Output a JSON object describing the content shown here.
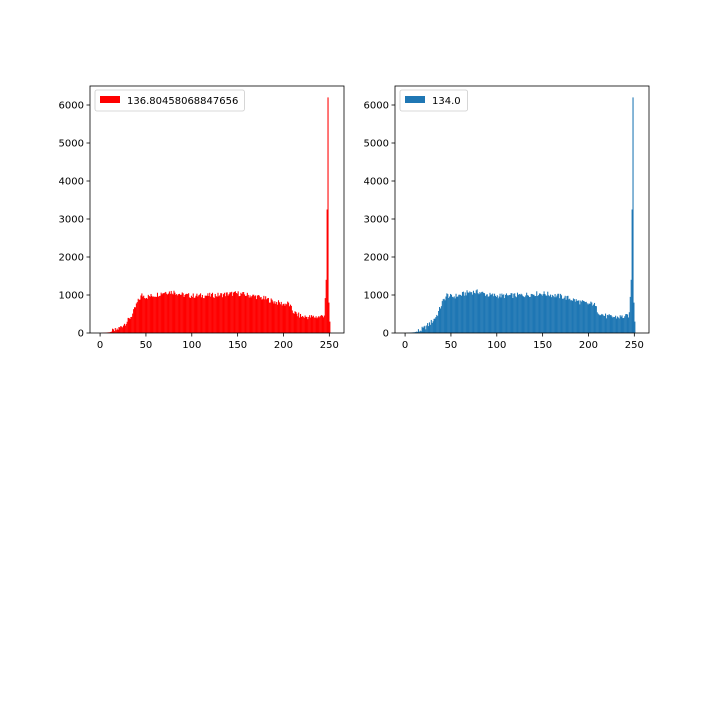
{
  "chart_data": [
    {
      "type": "histogram",
      "title": "",
      "xlabel": "",
      "ylabel": "",
      "xlim": [
        -11,
        266
      ],
      "ylim": [
        0,
        6500
      ],
      "xticks": [
        0,
        50,
        100,
        150,
        200,
        250
      ],
      "yticks": [
        0,
        1000,
        2000,
        3000,
        4000,
        5000,
        6000
      ],
      "xtick_labels": [
        "0",
        "50",
        "100",
        "150",
        "200",
        "250"
      ],
      "ytick_labels": [
        "0",
        "1000",
        "2000",
        "3000",
        "4000",
        "5000",
        "6000"
      ],
      "grid": false,
      "legend_position": "top-left",
      "series": [
        {
          "name": "136.80458068847656",
          "color": "#ff0000",
          "bins": [
            0,
            250
          ],
          "bin_width": 1,
          "counts_approx": {
            "0": 0,
            "10": 20,
            "15": 60,
            "20": 120,
            "25": 220,
            "30": 330,
            "35": 500,
            "40": 800,
            "45": 1000,
            "50": 950,
            "60": 1000,
            "70": 1080,
            "80": 1080,
            "90": 1000,
            "100": 980,
            "110": 980,
            "120": 990,
            "130": 1000,
            "140": 1030,
            "150": 1040,
            "160": 1000,
            "170": 960,
            "180": 900,
            "190": 820,
            "200": 760,
            "205": 780,
            "210": 560,
            "215": 480,
            "220": 430,
            "230": 420,
            "240": 430,
            "244": 480,
            "246": 1400,
            "247": 3250,
            "248": 6200,
            "249": 800,
            "250": 300
          }
        }
      ]
    },
    {
      "type": "histogram",
      "title": "",
      "xlabel": "",
      "ylabel": "",
      "xlim": [
        -11,
        266
      ],
      "ylim": [
        0,
        6500
      ],
      "xticks": [
        0,
        50,
        100,
        150,
        200,
        250
      ],
      "yticks": [
        0,
        1000,
        2000,
        3000,
        4000,
        5000,
        6000
      ],
      "xtick_labels": [
        "0",
        "50",
        "100",
        "150",
        "200",
        "250"
      ],
      "ytick_labels": [
        "0",
        "1000",
        "2000",
        "3000",
        "4000",
        "5000",
        "6000"
      ],
      "grid": false,
      "legend_position": "top-left",
      "series": [
        {
          "name": "134.0",
          "color": "#1f77b4",
          "bins": [
            0,
            250
          ],
          "bin_width": 1,
          "counts_approx": {
            "0": 0,
            "10": 20,
            "15": 60,
            "20": 120,
            "25": 220,
            "30": 330,
            "35": 500,
            "40": 800,
            "45": 1000,
            "50": 950,
            "60": 1000,
            "70": 1080,
            "80": 1080,
            "90": 1000,
            "100": 980,
            "110": 980,
            "120": 990,
            "130": 1000,
            "140": 1030,
            "150": 1040,
            "160": 1000,
            "170": 960,
            "180": 900,
            "190": 820,
            "200": 760,
            "205": 780,
            "210": 560,
            "215": 480,
            "220": 430,
            "230": 420,
            "240": 430,
            "244": 480,
            "246": 1400,
            "247": 3250,
            "248": 6200,
            "249": 800,
            "250": 300
          }
        }
      ]
    }
  ]
}
